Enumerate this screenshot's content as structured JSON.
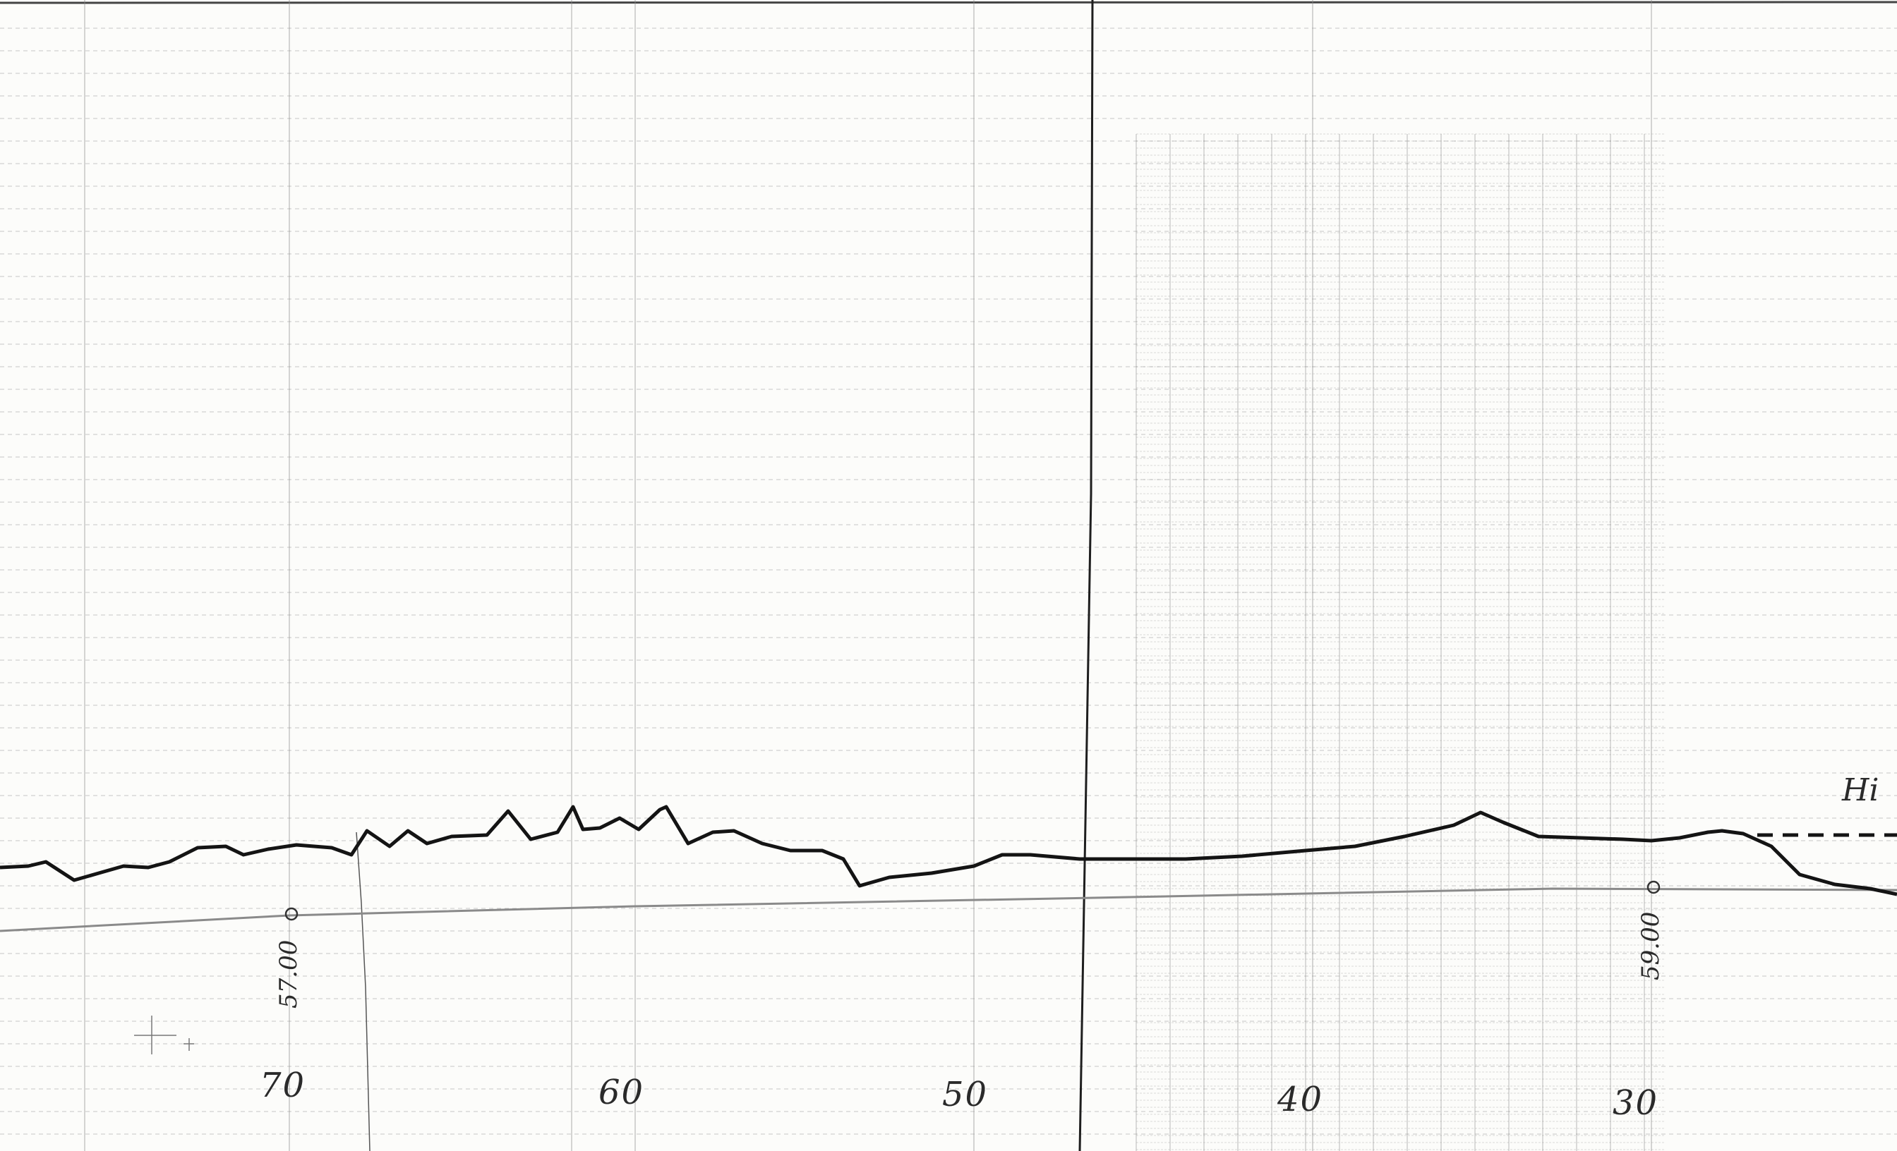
{
  "document": {
    "type": "hand-drawn profile on graph paper",
    "ink_color": "#1a1a1a",
    "grid_color": "#9a9a9a",
    "datum_color": "#8a8a8a"
  },
  "axis": {
    "tick_labels": [
      "70",
      "60",
      "50",
      "40",
      "30"
    ]
  },
  "annotations": {
    "right_marker": "Hi",
    "elevation_left": "57.00",
    "elevation_right": "59.00"
  }
}
